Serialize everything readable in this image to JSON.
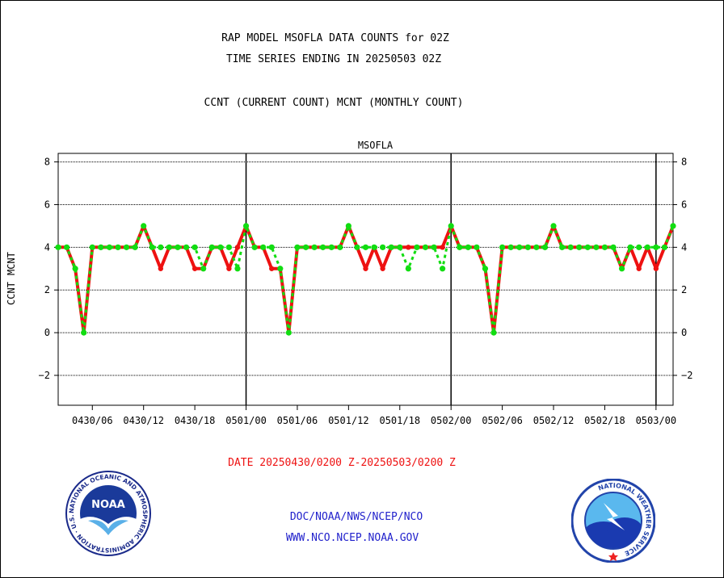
{
  "header": {
    "title_line1": "RAP MODEL MSOFLA DATA COUNTS for 02Z",
    "title_line2": "TIME SERIES ENDING IN 20250503 02Z",
    "subtitle": "CCNT (CURRENT COUNT) MCNT (MONTHLY COUNT)"
  },
  "footer": {
    "date_range": "DATE 20250430/0200 Z-20250503/0200 Z",
    "org_line": "DOC/NOAA/NWS/NCEP/NCO",
    "url_line": "WWW.NCO.NCEP.NOAA.GOV"
  },
  "logos": {
    "noaa_label": "NOAA",
    "noaa_ring_text": "NATIONAL OCEANIC AND ATMOSPHERIC ADMINISTRATION · U.S. DEPARTMENT OF COMMERCE",
    "nws_ring_text": "NATIONAL WEATHER SERVICE"
  },
  "colors": {
    "ccnt": "#ee1111",
    "mcnt": "#11dd11",
    "panel_title": "#2222cc",
    "date_text": "#ee1111",
    "footer_text": "#2222cc"
  },
  "chart_data": {
    "type": "line",
    "panel_title": "MSOFLA",
    "ylabel_series": [
      "CCNT",
      "MCNT"
    ],
    "ylim": [
      -3.4,
      8.4
    ],
    "yticks": [
      -2,
      0,
      2,
      4,
      6,
      8
    ],
    "grid": true,
    "x_unit": "hours from 0430/02",
    "xlim": [
      0,
      72
    ],
    "xtick_positions": [
      4,
      10,
      16,
      22,
      28,
      34,
      40,
      46,
      52,
      58,
      64,
      70
    ],
    "xtick_labels": [
      "0430/06",
      "0430/12",
      "0430/18",
      "0501/00",
      "0501/06",
      "0501/12",
      "0501/18",
      "0502/00",
      "0502/06",
      "0502/12",
      "0502/18",
      "0503/00"
    ],
    "day_boundaries": [
      22,
      46,
      70
    ],
    "x": [
      0,
      1,
      2,
      3,
      4,
      5,
      6,
      7,
      8,
      9,
      10,
      11,
      12,
      13,
      14,
      15,
      16,
      17,
      18,
      19,
      20,
      21,
      22,
      23,
      24,
      25,
      26,
      27,
      28,
      29,
      30,
      31,
      32,
      33,
      34,
      35,
      36,
      37,
      38,
      39,
      40,
      41,
      42,
      43,
      44,
      45,
      46,
      47,
      48,
      49,
      50,
      51,
      52,
      53,
      54,
      55,
      56,
      57,
      58,
      59,
      60,
      61,
      62,
      63,
      64,
      65,
      66,
      67,
      68,
      69,
      70,
      71,
      72
    ],
    "series": [
      {
        "name": "CCNT",
        "values": [
          4,
          4,
          3,
          0,
          4,
          4,
          4,
          4,
          4,
          4,
          5,
          4,
          3,
          4,
          4,
          4,
          3,
          3,
          4,
          4,
          3,
          4,
          5,
          4,
          4,
          3,
          3,
          0,
          4,
          4,
          4,
          4,
          4,
          4,
          5,
          4,
          3,
          4,
          3,
          4,
          4,
          4,
          4,
          4,
          4,
          4,
          5,
          4,
          4,
          4,
          3,
          0,
          4,
          4,
          4,
          4,
          4,
          4,
          5,
          4,
          4,
          4,
          4,
          4,
          4,
          4,
          3,
          4,
          3,
          4,
          3,
          4,
          5
        ]
      },
      {
        "name": "MCNT",
        "values": [
          4,
          4,
          3,
          0,
          4,
          4,
          4,
          4,
          4,
          4,
          5,
          4,
          4,
          4,
          4,
          4,
          4,
          3,
          4,
          4,
          4,
          3,
          5,
          4,
          4,
          4,
          3,
          0,
          4,
          4,
          4,
          4,
          4,
          4,
          5,
          4,
          4,
          4,
          4,
          4,
          4,
          3,
          4,
          4,
          4,
          3,
          5,
          4,
          4,
          4,
          3,
          0,
          4,
          4,
          4,
          4,
          4,
          4,
          5,
          4,
          4,
          4,
          4,
          4,
          4,
          4,
          3,
          4,
          4,
          4,
          4,
          4,
          5
        ]
      }
    ]
  }
}
